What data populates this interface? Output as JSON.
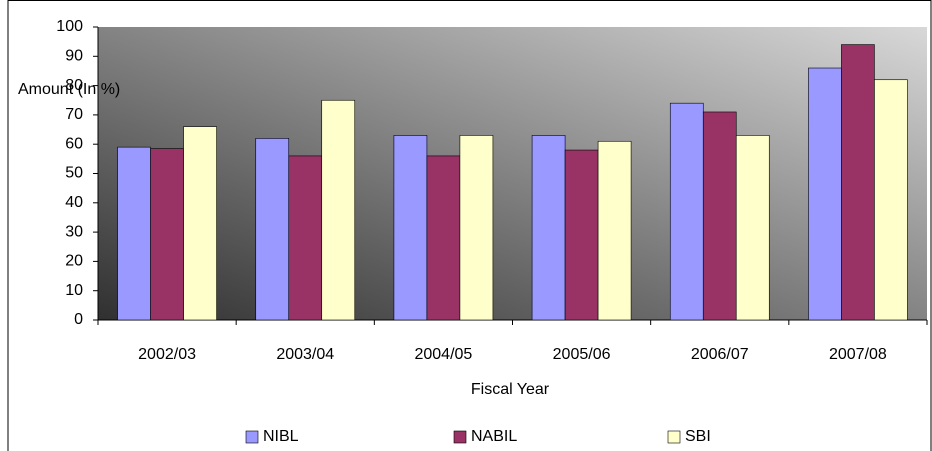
{
  "chart_data": {
    "type": "bar",
    "x_label": "Fiscal Year",
    "y_label": "Amount (In %)",
    "categories": [
      "2002/03",
      "2003/04",
      "2004/05",
      "2005/06",
      "2006/07",
      "2007/08"
    ],
    "series": [
      {
        "name": "NIBL",
        "color": "#9999ff",
        "values": [
          59,
          62,
          63,
          63,
          74,
          86
        ]
      },
      {
        "name": "NABIL",
        "color": "#993366",
        "values": [
          58.5,
          56,
          56,
          58,
          71,
          94
        ]
      },
      {
        "name": "SBI",
        "color": "#ffffcc",
        "values": [
          66,
          75,
          63,
          61,
          63,
          82
        ]
      }
    ],
    "ylim": [
      0,
      100
    ],
    "yticks": [
      0,
      10,
      20,
      30,
      40,
      50,
      60,
      70,
      80,
      90,
      100
    ],
    "legend": "bottom"
  }
}
